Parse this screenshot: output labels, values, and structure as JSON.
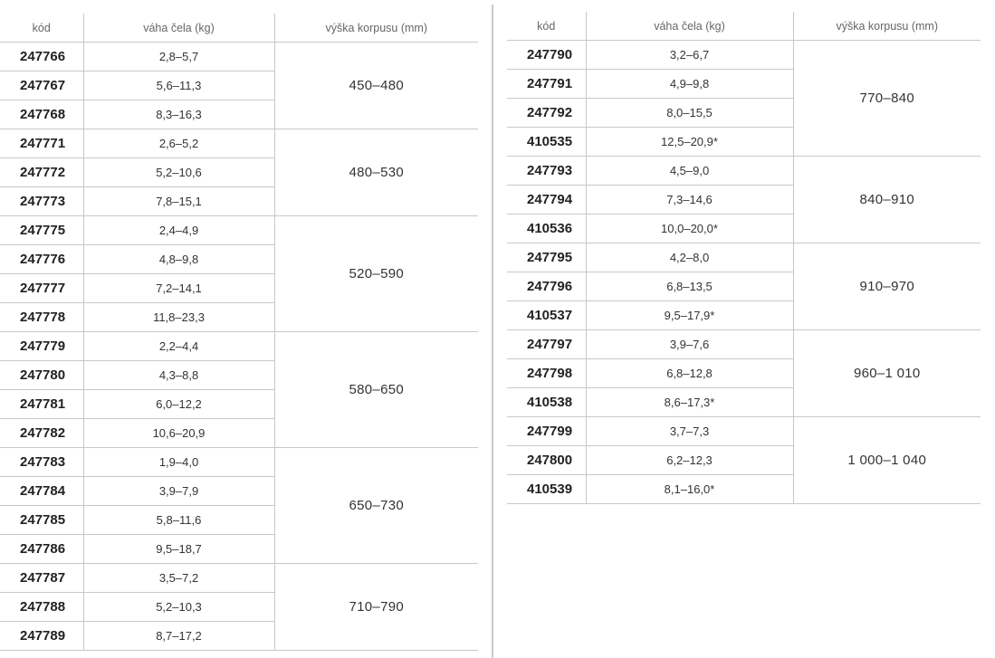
{
  "headers": {
    "code": "kód",
    "weight": "váha čela (kg)",
    "height": "výška korpusu (mm)"
  },
  "left_table": {
    "groups": [
      {
        "height": "450–480",
        "rows": [
          [
            "247766",
            "2,8–5,7"
          ],
          [
            "247767",
            "5,6–11,3"
          ],
          [
            "247768",
            "8,3–16,3"
          ]
        ]
      },
      {
        "height": "480–530",
        "rows": [
          [
            "247771",
            "2,6–5,2"
          ],
          [
            "247772",
            "5,2–10,6"
          ],
          [
            "247773",
            "7,8–15,1"
          ]
        ]
      },
      {
        "height": "520–590",
        "rows": [
          [
            "247775",
            "2,4–4,9"
          ],
          [
            "247776",
            "4,8–9,8"
          ],
          [
            "247777",
            "7,2–14,1"
          ],
          [
            "247778",
            "11,8–23,3"
          ]
        ]
      },
      {
        "height": "580–650",
        "rows": [
          [
            "247779",
            "2,2–4,4"
          ],
          [
            "247780",
            "4,3–8,8"
          ],
          [
            "247781",
            "6,0–12,2"
          ],
          [
            "247782",
            "10,6–20,9"
          ]
        ]
      },
      {
        "height": "650–730",
        "rows": [
          [
            "247783",
            "1,9–4,0"
          ],
          [
            "247784",
            "3,9–7,9"
          ],
          [
            "247785",
            "5,8–11,6"
          ],
          [
            "247786",
            "9,5–18,7"
          ]
        ]
      },
      {
        "height": "710–790",
        "rows": [
          [
            "247787",
            "3,5–7,2"
          ],
          [
            "247788",
            "5,2–10,3"
          ],
          [
            "247789",
            "8,7–17,2"
          ]
        ]
      }
    ]
  },
  "right_table": {
    "groups": [
      {
        "height": "770–840",
        "rows": [
          [
            "247790",
            "3,2–6,7"
          ],
          [
            "247791",
            "4,9–9,8"
          ],
          [
            "247792",
            "8,0–15,5"
          ],
          [
            "410535",
            "12,5–20,9*"
          ]
        ]
      },
      {
        "height": "840–910",
        "rows": [
          [
            "247793",
            "4,5–9,0"
          ],
          [
            "247794",
            "7,3–14,6"
          ],
          [
            "410536",
            "10,0–20,0*"
          ]
        ]
      },
      {
        "height": "910–970",
        "rows": [
          [
            "247795",
            "4,2–8,0"
          ],
          [
            "247796",
            "6,8–13,5"
          ],
          [
            "410537",
            "9,5–17,9*"
          ]
        ]
      },
      {
        "height": "960–1 010",
        "rows": [
          [
            "247797",
            "3,9–7,6"
          ],
          [
            "247798",
            "6,8–12,8"
          ],
          [
            "410538",
            "8,6–17,3*"
          ]
        ]
      },
      {
        "height": "1 000–1 040",
        "rows": [
          [
            "247799",
            "3,7–7,3"
          ],
          [
            "247800",
            "6,2–12,3"
          ],
          [
            "410539",
            "8,1–16,0*"
          ]
        ]
      }
    ]
  }
}
